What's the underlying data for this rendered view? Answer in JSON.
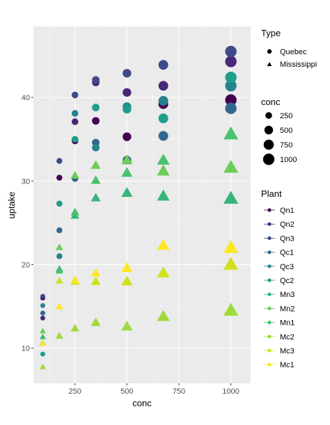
{
  "chart_data": {
    "type": "scatter",
    "xlabel": "conc",
    "ylabel": "uptake",
    "xlim": [
      50,
      1095
    ],
    "ylim": [
      5.8,
      48.5
    ],
    "xticks": [
      250,
      500,
      750,
      1000
    ],
    "yticks": [
      10,
      20,
      30,
      40
    ],
    "grid": true,
    "legend_position": "right",
    "x": [
      95,
      175,
      250,
      350,
      500,
      675,
      1000
    ],
    "series": [
      {
        "name": "Qn1",
        "type": "Quebec",
        "color": "#440154",
        "values": [
          16.0,
          30.4,
          34.8,
          37.2,
          35.3,
          39.2,
          39.7
        ]
      },
      {
        "name": "Qn2",
        "type": "Quebec",
        "color": "#482878",
        "values": [
          13.6,
          27.3,
          37.1,
          41.8,
          40.6,
          41.4,
          44.3
        ]
      },
      {
        "name": "Qn3",
        "type": "Quebec",
        "color": "#3E4A89",
        "values": [
          16.2,
          32.4,
          40.3,
          42.1,
          42.9,
          43.9,
          45.5
        ]
      },
      {
        "name": "Qc1",
        "type": "Quebec",
        "color": "#31688E",
        "values": [
          14.2,
          24.1,
          30.3,
          34.6,
          32.5,
          35.4,
          38.7
        ]
      },
      {
        "name": "Qc3",
        "type": "Quebec",
        "color": "#26828E",
        "values": [
          15.1,
          21.0,
          38.1,
          34.0,
          38.9,
          39.6,
          41.4
        ]
      },
      {
        "name": "Qc2",
        "type": "Quebec",
        "color": "#1F9E89",
        "values": [
          9.3,
          27.3,
          35.0,
          38.8,
          38.6,
          37.5,
          42.4
        ]
      },
      {
        "name": "Mn3",
        "type": "Mississippi",
        "color": "#35B779",
        "values": [
          11.3,
          19.4,
          25.8,
          27.9,
          28.5,
          28.1,
          27.8
        ]
      },
      {
        "name": "Mn2",
        "type": "Mississippi",
        "color": "#6DCD59",
        "values": [
          12.0,
          22.0,
          30.6,
          31.8,
          32.4,
          31.1,
          31.5
        ]
      },
      {
        "name": "Mn1",
        "type": "Mississippi",
        "color": "#4AC16D",
        "values": [
          10.6,
          19.2,
          26.2,
          30.0,
          30.9,
          32.4,
          35.5
        ]
      },
      {
        "name": "Mc2",
        "type": "Mississippi",
        "color": "#9FDA3A",
        "values": [
          7.7,
          11.4,
          12.3,
          13.0,
          12.5,
          13.7,
          14.4
        ]
      },
      {
        "name": "Mc3",
        "type": "Mississippi",
        "color": "#D0E11C",
        "values": [
          10.6,
          18.0,
          17.9,
          17.9,
          17.9,
          18.9,
          19.9
        ]
      },
      {
        "name": "Mc1",
        "type": "Mississippi",
        "color": "#FDE725",
        "values": [
          10.5,
          14.9,
          18.1,
          18.9,
          19.5,
          22.2,
          21.9
        ]
      }
    ],
    "legends": {
      "type": {
        "title": "Type",
        "items": [
          {
            "label": "Quebec",
            "shape": "circle"
          },
          {
            "label": "Mississippi",
            "shape": "triangle"
          }
        ]
      },
      "conc": {
        "title": "conc",
        "items": [
          {
            "label": "250",
            "value": 250
          },
          {
            "label": "500",
            "value": 500
          },
          {
            "label": "750",
            "value": 750
          },
          {
            "label": "1000",
            "value": 1000
          }
        ]
      },
      "plant": {
        "title": "Plant",
        "items": [
          "Qn1",
          "Qn2",
          "Qn3",
          "Qc1",
          "Qc3",
          "Qc2",
          "Mn3",
          "Mn2",
          "Mn1",
          "Mc2",
          "Mc3",
          "Mc1"
        ]
      }
    }
  }
}
